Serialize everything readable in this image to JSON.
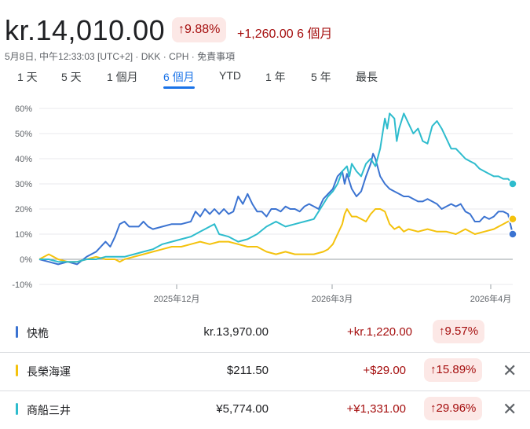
{
  "header": {
    "price": "kr.14,010.00",
    "pct_change": "↑9.88%",
    "abs_change": "+1,260.00",
    "period": "6 個月",
    "meta": "5月8日, 中午12:33:03 [UTC+2] · DKK · CPH · 免責事項"
  },
  "tabs": [
    "1 天",
    "5 天",
    "1 個月",
    "6 個月",
    "YTD",
    "1 年",
    "5 年",
    "最長"
  ],
  "active_tab": "6 個月",
  "colors": {
    "blue": "#3b73d1",
    "yellow": "#f4c20d",
    "cyan": "#2ebccd",
    "up_red": "#a50e0e",
    "pill_bg": "#fce8e6"
  },
  "chart_data": {
    "type": "line",
    "y_ticks": [
      "60%",
      "50%",
      "40%",
      "30%",
      "20%",
      "10%",
      "0%",
      "-10%"
    ],
    "y_tick_values": [
      60,
      50,
      40,
      30,
      20,
      10,
      0,
      -10
    ],
    "ylim": [
      -10,
      65
    ],
    "x_tick_labels": [
      "2025年12月",
      "2026年3月",
      "2026年4月"
    ],
    "x_tick_positions": [
      0.3,
      0.625,
      0.95
    ],
    "grid": "horizontal",
    "series": [
      {
        "name": "快桅",
        "color": "#3b73d1",
        "points": [
          [
            0,
            0
          ],
          [
            0.02,
            -1
          ],
          [
            0.04,
            -2
          ],
          [
            0.06,
            -1
          ],
          [
            0.08,
            -2
          ],
          [
            0.1,
            1
          ],
          [
            0.12,
            3
          ],
          [
            0.14,
            7
          ],
          [
            0.15,
            5
          ],
          [
            0.16,
            9
          ],
          [
            0.17,
            14
          ],
          [
            0.18,
            15
          ],
          [
            0.19,
            13
          ],
          [
            0.21,
            13
          ],
          [
            0.22,
            15
          ],
          [
            0.23,
            13
          ],
          [
            0.24,
            12
          ],
          [
            0.26,
            13
          ],
          [
            0.28,
            14
          ],
          [
            0.3,
            14
          ],
          [
            0.32,
            15
          ],
          [
            0.33,
            19
          ],
          [
            0.34,
            17
          ],
          [
            0.35,
            20
          ],
          [
            0.36,
            18
          ],
          [
            0.37,
            20
          ],
          [
            0.38,
            18
          ],
          [
            0.39,
            20
          ],
          [
            0.4,
            18
          ],
          [
            0.41,
            19
          ],
          [
            0.42,
            25
          ],
          [
            0.43,
            22
          ],
          [
            0.44,
            26
          ],
          [
            0.45,
            22
          ],
          [
            0.46,
            19
          ],
          [
            0.47,
            19
          ],
          [
            0.48,
            17
          ],
          [
            0.49,
            20
          ],
          [
            0.5,
            20
          ],
          [
            0.51,
            19
          ],
          [
            0.52,
            21
          ],
          [
            0.53,
            20
          ],
          [
            0.54,
            20
          ],
          [
            0.55,
            19
          ],
          [
            0.56,
            21
          ],
          [
            0.57,
            22
          ],
          [
            0.58,
            21
          ],
          [
            0.59,
            20
          ],
          [
            0.6,
            24
          ],
          [
            0.61,
            26
          ],
          [
            0.62,
            28
          ],
          [
            0.63,
            33
          ],
          [
            0.64,
            35
          ],
          [
            0.645,
            30
          ],
          [
            0.65,
            34
          ],
          [
            0.66,
            28
          ],
          [
            0.67,
            25
          ],
          [
            0.68,
            27
          ],
          [
            0.69,
            33
          ],
          [
            0.7,
            38
          ],
          [
            0.705,
            42
          ],
          [
            0.71,
            40
          ],
          [
            0.72,
            33
          ],
          [
            0.73,
            30
          ],
          [
            0.74,
            28
          ],
          [
            0.75,
            27
          ],
          [
            0.76,
            26
          ],
          [
            0.77,
            25
          ],
          [
            0.78,
            25
          ],
          [
            0.79,
            24
          ],
          [
            0.8,
            23
          ],
          [
            0.81,
            23
          ],
          [
            0.82,
            24
          ],
          [
            0.83,
            23
          ],
          [
            0.84,
            22
          ],
          [
            0.85,
            20
          ],
          [
            0.86,
            21
          ],
          [
            0.87,
            22
          ],
          [
            0.88,
            21
          ],
          [
            0.89,
            22
          ],
          [
            0.9,
            19
          ],
          [
            0.91,
            18
          ],
          [
            0.92,
            15
          ],
          [
            0.93,
            15
          ],
          [
            0.94,
            17
          ],
          [
            0.95,
            16
          ],
          [
            0.96,
            17
          ],
          [
            0.97,
            19
          ],
          [
            0.98,
            19
          ],
          [
            0.99,
            18
          ],
          [
            1.0,
            10
          ]
        ]
      },
      {
        "name": "長榮海運",
        "color": "#f4c20d",
        "points": [
          [
            0,
            0
          ],
          [
            0.02,
            2
          ],
          [
            0.03,
            1
          ],
          [
            0.04,
            0
          ],
          [
            0.06,
            -1
          ],
          [
            0.08,
            -1
          ],
          [
            0.1,
            0
          ],
          [
            0.12,
            1
          ],
          [
            0.14,
            0
          ],
          [
            0.16,
            0
          ],
          [
            0.17,
            -1
          ],
          [
            0.18,
            0
          ],
          [
            0.2,
            1
          ],
          [
            0.22,
            2
          ],
          [
            0.24,
            3
          ],
          [
            0.26,
            4
          ],
          [
            0.28,
            5
          ],
          [
            0.3,
            5
          ],
          [
            0.32,
            6
          ],
          [
            0.34,
            7
          ],
          [
            0.36,
            6
          ],
          [
            0.38,
            7
          ],
          [
            0.4,
            7
          ],
          [
            0.42,
            6
          ],
          [
            0.44,
            5
          ],
          [
            0.46,
            5
          ],
          [
            0.48,
            3
          ],
          [
            0.5,
            2
          ],
          [
            0.52,
            3
          ],
          [
            0.54,
            2
          ],
          [
            0.56,
            2
          ],
          [
            0.58,
            2
          ],
          [
            0.6,
            3
          ],
          [
            0.61,
            4
          ],
          [
            0.62,
            6
          ],
          [
            0.63,
            10
          ],
          [
            0.64,
            14
          ],
          [
            0.645,
            18
          ],
          [
            0.65,
            20
          ],
          [
            0.66,
            17
          ],
          [
            0.67,
            17
          ],
          [
            0.68,
            16
          ],
          [
            0.69,
            15
          ],
          [
            0.7,
            18
          ],
          [
            0.71,
            20
          ],
          [
            0.72,
            20
          ],
          [
            0.73,
            19
          ],
          [
            0.74,
            14
          ],
          [
            0.75,
            12
          ],
          [
            0.76,
            13
          ],
          [
            0.77,
            11
          ],
          [
            0.78,
            12
          ],
          [
            0.8,
            11
          ],
          [
            0.82,
            12
          ],
          [
            0.84,
            11
          ],
          [
            0.86,
            11
          ],
          [
            0.88,
            10
          ],
          [
            0.9,
            12
          ],
          [
            0.92,
            10
          ],
          [
            0.94,
            11
          ],
          [
            0.96,
            12
          ],
          [
            0.98,
            14
          ],
          [
            1.0,
            16
          ]
        ]
      },
      {
        "name": "商船三井",
        "color": "#2ebccd",
        "points": [
          [
            0,
            0
          ],
          [
            0.02,
            0
          ],
          [
            0.04,
            -1
          ],
          [
            0.06,
            -1
          ],
          [
            0.08,
            -1
          ],
          [
            0.1,
            0
          ],
          [
            0.12,
            0
          ],
          [
            0.14,
            1
          ],
          [
            0.16,
            1
          ],
          [
            0.18,
            1
          ],
          [
            0.2,
            2
          ],
          [
            0.22,
            3
          ],
          [
            0.24,
            4
          ],
          [
            0.26,
            6
          ],
          [
            0.28,
            7
          ],
          [
            0.3,
            8
          ],
          [
            0.32,
            9
          ],
          [
            0.33,
            10
          ],
          [
            0.34,
            11
          ],
          [
            0.35,
            12
          ],
          [
            0.36,
            13
          ],
          [
            0.37,
            14
          ],
          [
            0.38,
            10
          ],
          [
            0.4,
            9
          ],
          [
            0.42,
            7
          ],
          [
            0.44,
            8
          ],
          [
            0.46,
            10
          ],
          [
            0.48,
            13
          ],
          [
            0.5,
            15
          ],
          [
            0.52,
            13
          ],
          [
            0.54,
            14
          ],
          [
            0.56,
            15
          ],
          [
            0.58,
            16
          ],
          [
            0.59,
            19
          ],
          [
            0.6,
            22
          ],
          [
            0.61,
            25
          ],
          [
            0.62,
            27
          ],
          [
            0.63,
            30
          ],
          [
            0.64,
            35
          ],
          [
            0.65,
            37
          ],
          [
            0.655,
            33
          ],
          [
            0.66,
            38
          ],
          [
            0.67,
            35
          ],
          [
            0.68,
            33
          ],
          [
            0.69,
            38
          ],
          [
            0.7,
            40
          ],
          [
            0.71,
            37
          ],
          [
            0.72,
            44
          ],
          [
            0.73,
            56
          ],
          [
            0.735,
            52
          ],
          [
            0.74,
            58
          ],
          [
            0.75,
            56
          ],
          [
            0.755,
            47
          ],
          [
            0.76,
            52
          ],
          [
            0.77,
            58
          ],
          [
            0.78,
            54
          ],
          [
            0.79,
            50
          ],
          [
            0.8,
            52
          ],
          [
            0.81,
            47
          ],
          [
            0.82,
            46
          ],
          [
            0.83,
            53
          ],
          [
            0.84,
            55
          ],
          [
            0.85,
            52
          ],
          [
            0.86,
            48
          ],
          [
            0.87,
            44
          ],
          [
            0.88,
            44
          ],
          [
            0.89,
            42
          ],
          [
            0.9,
            40
          ],
          [
            0.91,
            39
          ],
          [
            0.92,
            38
          ],
          [
            0.93,
            36
          ],
          [
            0.94,
            35
          ],
          [
            0.95,
            34
          ],
          [
            0.96,
            33
          ],
          [
            0.97,
            33
          ],
          [
            0.98,
            32
          ],
          [
            0.99,
            32
          ],
          [
            1.0,
            30
          ]
        ]
      }
    ]
  },
  "rows": [
    {
      "name": "快桅",
      "color": "#3b73d1",
      "value": "kr.13,970.00",
      "change": "+kr.1,220.00",
      "pct": "↑9.57%",
      "removable": false
    },
    {
      "name": "長榮海運",
      "color": "#f4c20d",
      "value": "$211.50",
      "change": "+$29.00",
      "pct": "↑15.89%",
      "removable": true
    },
    {
      "name": "商船三井",
      "color": "#2ebccd",
      "value": "¥5,774.00",
      "change": "+¥1,331.00",
      "pct": "↑29.96%",
      "removable": true
    }
  ],
  "close_icon_glyph": "✕"
}
